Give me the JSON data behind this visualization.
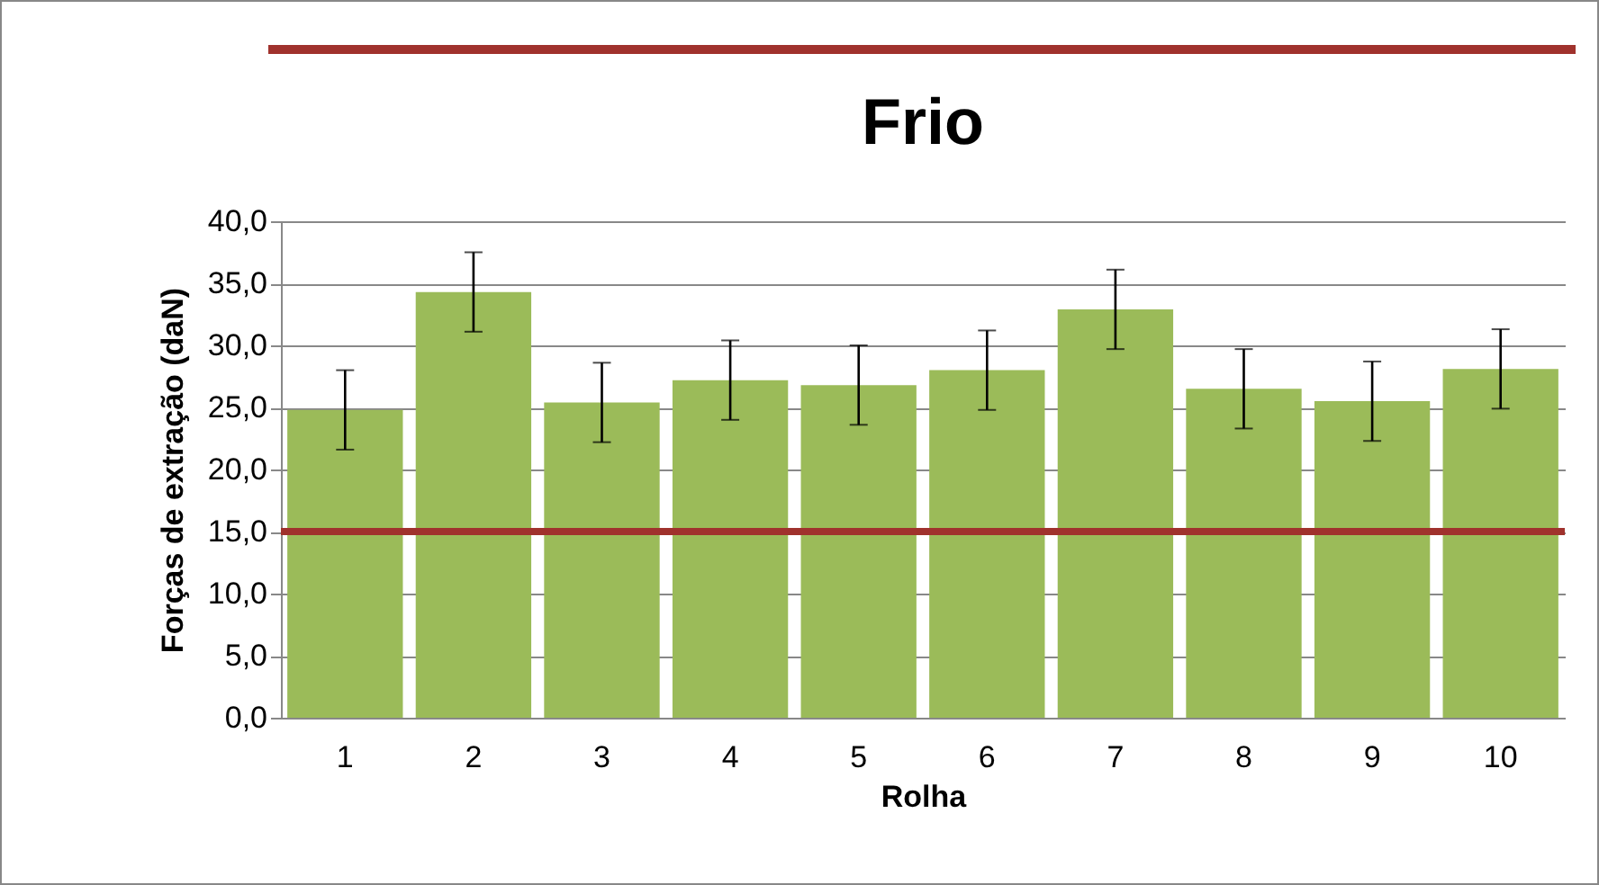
{
  "chart_data": {
    "type": "bar",
    "title": "Frio",
    "xlabel": "Rolha",
    "ylabel": "Forças de extração (daN)",
    "categories": [
      "1",
      "2",
      "3",
      "4",
      "5",
      "6",
      "7",
      "8",
      "9",
      "10"
    ],
    "values": [
      24.8,
      34.3,
      25.4,
      27.2,
      26.8,
      28.0,
      32.9,
      26.5,
      25.5,
      28.1
    ],
    "errors": [
      3.2,
      3.2,
      3.2,
      3.2,
      3.2,
      3.2,
      3.2,
      3.2,
      3.2,
      3.2
    ],
    "color": "#9bbb59",
    "ylim": [
      0,
      40
    ],
    "yticks": [
      {
        "value": 0,
        "label": "0,0"
      },
      {
        "value": 5,
        "label": "5,0"
      },
      {
        "value": 10,
        "label": "10,0"
      },
      {
        "value": 15,
        "label": "15,0"
      },
      {
        "value": 20,
        "label": "20,0"
      },
      {
        "value": 25,
        "label": "25,0"
      },
      {
        "value": 30,
        "label": "30,0"
      },
      {
        "value": 35,
        "label": "35,0"
      },
      {
        "value": 40,
        "label": "40,0"
      }
    ],
    "ref_lines": [
      {
        "axis": "y",
        "value": 15,
        "color": "#a0322d"
      }
    ],
    "grid": "y"
  }
}
